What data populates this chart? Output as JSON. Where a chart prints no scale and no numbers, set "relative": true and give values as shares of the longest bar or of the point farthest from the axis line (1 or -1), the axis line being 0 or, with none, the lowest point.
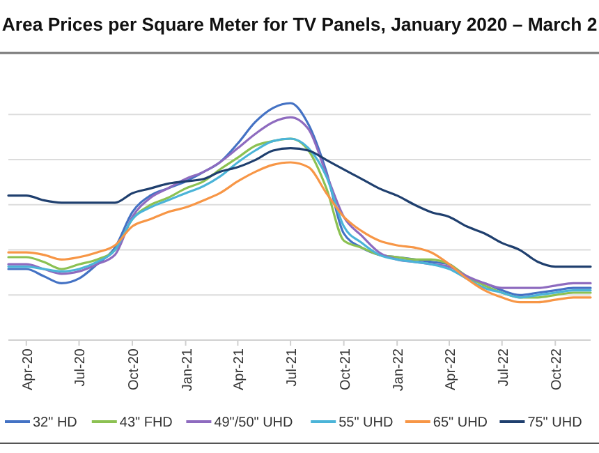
{
  "chart_data": {
    "type": "line",
    "title": "Area Prices per Square Meter for TV Panels, January 2020 – March 2",
    "relative": true,
    "grid": "y",
    "legend": "bottom",
    "marker": "none",
    "line_style": "solid",
    "x": [
      "2020-03",
      "2020-04",
      "2020-05",
      "2020-06",
      "2020-07",
      "2020-08",
      "2020-09",
      "2020-10",
      "2020-11",
      "2020-12",
      "2021-01",
      "2021-02",
      "2021-03",
      "2021-04",
      "2021-05",
      "2021-06",
      "2021-07",
      "2021-08",
      "2021-09",
      "2021-10",
      "2021-11",
      "2021-12",
      "2022-01",
      "2022-02",
      "2022-03",
      "2022-04",
      "2022-05",
      "2022-06",
      "2022-07",
      "2022-08",
      "2022-09",
      "2022-10",
      "2022-11",
      "2022-12"
    ],
    "xlim": [
      "2020-03",
      "2022-12"
    ],
    "xticks": [
      {
        "value": "2020-04",
        "label": "Apr-20"
      },
      {
        "value": "2020-07",
        "label": "Jul-20"
      },
      {
        "value": "2020-10",
        "label": "Oct-20"
      },
      {
        "value": "2021-01",
        "label": "Jan-21"
      },
      {
        "value": "2021-04",
        "label": "Apr-21"
      },
      {
        "value": "2021-07",
        "label": "Jul-21"
      },
      {
        "value": "2021-10",
        "label": "Oct-21"
      },
      {
        "value": "2022-01",
        "label": "Jan-22"
      },
      {
        "value": "2022-04",
        "label": "Apr-22"
      },
      {
        "value": "2022-07",
        "label": "Jul-22"
      },
      {
        "value": "2022-10",
        "label": "Oct-22"
      }
    ],
    "series": [
      {
        "name": "32\" HD",
        "color": "#4472c4",
        "values": [
          0.3,
          0.3,
          0.27,
          0.24,
          0.26,
          0.32,
          0.39,
          0.54,
          0.61,
          0.64,
          0.67,
          0.71,
          0.75,
          0.83,
          0.92,
          0.98,
          1,
          0.91,
          0.71,
          0.45,
          0.39,
          0.36,
          0.35,
          0.34,
          0.33,
          0.32,
          0.26,
          0.24,
          0.21,
          0.19,
          0.2,
          0.21,
          0.22,
          0.22
        ]
      },
      {
        "name": "43\" FHD",
        "color": "#8cc152",
        "values": [
          0.35,
          0.35,
          0.33,
          0.3,
          0.32,
          0.34,
          0.38,
          0.51,
          0.57,
          0.6,
          0.64,
          0.67,
          0.72,
          0.77,
          0.82,
          0.84,
          0.85,
          0.8,
          0.64,
          0.42,
          0.39,
          0.36,
          0.35,
          0.34,
          0.34,
          0.32,
          0.27,
          0.23,
          0.2,
          0.18,
          0.18,
          0.19,
          0.2,
          0.2
        ]
      },
      {
        "name": "49\"/50\" UHD",
        "color": "#8e6bbf",
        "values": [
          0.32,
          0.32,
          0.3,
          0.28,
          0.29,
          0.32,
          0.36,
          0.52,
          0.6,
          0.64,
          0.68,
          0.71,
          0.75,
          0.81,
          0.87,
          0.92,
          0.94,
          0.89,
          0.7,
          0.52,
          0.44,
          0.37,
          0.34,
          0.33,
          0.32,
          0.31,
          0.27,
          0.24,
          0.22,
          0.22,
          0.22,
          0.23,
          0.24,
          0.24
        ]
      },
      {
        "name": "55\" UHD",
        "color": "#4bb4d8",
        "values": [
          0.31,
          0.31,
          0.3,
          0.29,
          0.3,
          0.33,
          0.38,
          0.51,
          0.56,
          0.59,
          0.62,
          0.65,
          0.69,
          0.75,
          0.8,
          0.84,
          0.85,
          0.81,
          0.69,
          0.48,
          0.41,
          0.36,
          0.34,
          0.33,
          0.32,
          0.3,
          0.26,
          0.22,
          0.2,
          0.18,
          0.19,
          0.2,
          0.21,
          0.21
        ]
      },
      {
        "name": "65\" UHD",
        "color": "#f79646",
        "values": [
          0.37,
          0.37,
          0.36,
          0.34,
          0.35,
          0.37,
          0.4,
          0.48,
          0.51,
          0.54,
          0.56,
          0.59,
          0.62,
          0.67,
          0.71,
          0.74,
          0.75,
          0.73,
          0.62,
          0.52,
          0.46,
          0.42,
          0.4,
          0.39,
          0.37,
          0.32,
          0.26,
          0.21,
          0.18,
          0.16,
          0.16,
          0.17,
          0.18,
          0.18
        ]
      },
      {
        "name": "75\" UHD",
        "color": "#1f3f6e",
        "values": [
          0.61,
          0.61,
          0.59,
          0.58,
          0.58,
          0.58,
          0.58,
          0.62,
          0.64,
          0.66,
          0.67,
          0.68,
          0.71,
          0.73,
          0.76,
          0.8,
          0.81,
          0.8,
          0.76,
          0.72,
          0.68,
          0.64,
          0.61,
          0.57,
          0.54,
          0.52,
          0.48,
          0.45,
          0.41,
          0.38,
          0.33,
          0.31,
          0.31,
          0.31
        ]
      }
    ]
  }
}
